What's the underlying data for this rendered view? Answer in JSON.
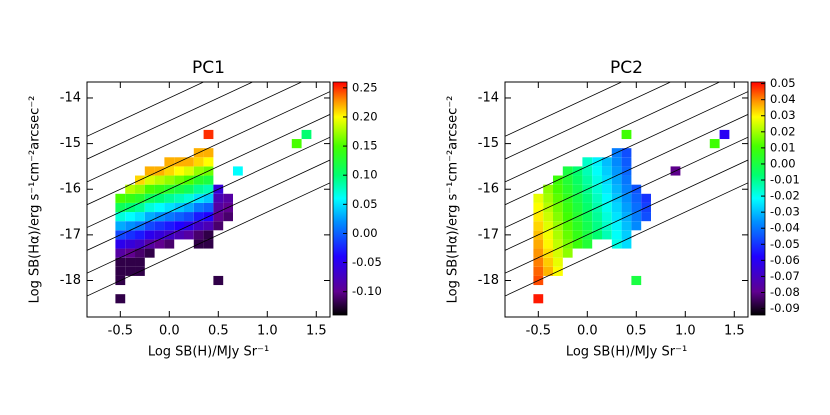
{
  "chart_data": [
    {
      "type": "heatmap",
      "title": "PC1",
      "xlabel": "Log SB(H)/MJy Sr⁻¹",
      "ylabel": "Log SB(Hα)/erg s⁻¹cm⁻²arcsec⁻²",
      "xlim": [
        -0.84,
        1.64
      ],
      "ylim": [
        -18.8,
        -13.65
      ],
      "xticks": [
        -0.5,
        {
          "value": 0,
          "label": "0.0"
        },
        0.5,
        {
          "value": 1,
          "label": "1.0"
        },
        1.5
      ],
      "yticks": [
        -18,
        -17,
        -16,
        -15,
        -14
      ],
      "colormap": "rainbow",
      "clim": [
        -0.14,
        0.26
      ],
      "cticks": [
        {
          "value": -0.1,
          "label": "-0.10"
        },
        -0.05,
        {
          "value": 0,
          "label": "0.00"
        },
        0.05,
        {
          "value": 0.1,
          "label": "0.10"
        },
        0.15,
        {
          "value": 0.2,
          "label": "0.20"
        },
        0.25
      ],
      "cell_width": 0.1,
      "cell_height": 0.2,
      "reference_lines": {
        "slope": 1,
        "intercepts": [
          -14,
          -14.5,
          -15,
          -15.5,
          -16,
          -16.5,
          -17,
          -17.5
        ]
      },
      "x": [
        -0.5,
        -0.5,
        -0.5,
        -0.5,
        -0.5,
        -0.5,
        -0.5,
        -0.5,
        -0.5,
        -0.5,
        -0.5,
        -0.4,
        -0.4,
        -0.4,
        -0.4,
        -0.4,
        -0.4,
        -0.4,
        -0.4,
        -0.4,
        -0.4,
        -0.3,
        -0.3,
        -0.3,
        -0.3,
        -0.3,
        -0.3,
        -0.3,
        -0.3,
        -0.3,
        -0.3,
        -0.3,
        -0.2,
        -0.2,
        -0.2,
        -0.2,
        -0.2,
        -0.2,
        -0.2,
        -0.2,
        -0.2,
        -0.2,
        -0.1,
        -0.1,
        -0.1,
        -0.1,
        -0.1,
        -0.1,
        -0.1,
        -0.1,
        -0.1,
        0,
        0,
        0,
        0,
        0,
        0,
        0,
        0,
        0,
        0,
        0.1,
        0.1,
        0.1,
        0.1,
        0.1,
        0.1,
        0.1,
        0.1,
        0.1,
        0.2,
        0.2,
        0.2,
        0.2,
        0.2,
        0.2,
        0.2,
        0.2,
        0.2,
        0.3,
        0.3,
        0.3,
        0.3,
        0.3,
        0.3,
        0.3,
        0.3,
        0.3,
        0.3,
        0.3,
        0.4,
        0.4,
        0.4,
        0.4,
        0.4,
        0.4,
        0.4,
        0.4,
        0.4,
        0.4,
        0.4,
        0.5,
        0.5,
        0.5,
        0.5,
        0.5,
        0.6,
        0.6,
        0.6,
        0.5,
        0.7,
        0.4,
        1.3,
        1.4
      ],
      "y": [
        -18.4,
        -18.0,
        -17.8,
        -17.6,
        -17.4,
        -17.2,
        -17.0,
        -16.8,
        -16.6,
        -16.4,
        -16.2,
        -17.8,
        -17.6,
        -17.4,
        -17.2,
        -17.0,
        -16.8,
        -16.6,
        -16.4,
        -16.2,
        -16.0,
        -17.8,
        -17.6,
        -17.4,
        -17.2,
        -17.0,
        -16.8,
        -16.6,
        -16.4,
        -16.2,
        -16.0,
        -15.8,
        -17.4,
        -17.2,
        -17.0,
        -16.8,
        -16.6,
        -16.4,
        -16.2,
        -16.0,
        -15.8,
        -15.6,
        -17.2,
        -17.0,
        -16.8,
        -16.6,
        -16.4,
        -16.2,
        -16.0,
        -15.8,
        -15.6,
        -17.2,
        -17.0,
        -16.8,
        -16.6,
        -16.4,
        -16.2,
        -16.0,
        -15.8,
        -15.6,
        -15.4,
        -17.0,
        -16.8,
        -16.6,
        -16.4,
        -16.2,
        -16.0,
        -15.8,
        -15.6,
        -15.4,
        -17.0,
        -16.8,
        -16.6,
        -16.4,
        -16.2,
        -16.0,
        -15.8,
        -15.6,
        -15.4,
        -17.2,
        -17.0,
        -16.8,
        -16.6,
        -16.4,
        -16.2,
        -16.0,
        -15.8,
        -15.6,
        -15.4,
        -15.2,
        -17.2,
        -17.0,
        -16.8,
        -16.6,
        -16.4,
        -16.2,
        -16.0,
        -15.8,
        -15.6,
        -15.4,
        -15.2,
        -16.8,
        -16.6,
        -16.4,
        -16.2,
        -16.0,
        -16.6,
        -16.4,
        -16.2,
        -18.0,
        -15.6,
        -14.8,
        -15.0,
        -14.8
      ],
      "values": [
        -0.12,
        -0.12,
        -0.12,
        -0.12,
        -0.09,
        -0.05,
        -0.01,
        0.03,
        0.07,
        0.11,
        0.15,
        -0.12,
        -0.12,
        -0.1,
        -0.06,
        -0.02,
        0.02,
        0.06,
        0.1,
        0.14,
        0.18,
        -0.12,
        -0.12,
        -0.11,
        -0.07,
        -0.03,
        0.01,
        0.05,
        0.09,
        0.13,
        0.17,
        0.21,
        -0.12,
        -0.09,
        -0.05,
        -0.01,
        0.03,
        0.07,
        0.11,
        0.15,
        0.19,
        0.22,
        -0.1,
        -0.06,
        -0.02,
        0.02,
        0.06,
        0.1,
        0.14,
        0.18,
        0.22,
        -0.11,
        -0.07,
        -0.03,
        0.01,
        0.05,
        0.09,
        0.13,
        0.17,
        0.21,
        0.22,
        -0.08,
        -0.04,
        0,
        0.04,
        0.08,
        0.12,
        0.16,
        0.2,
        0.22,
        -0.09,
        -0.05,
        -0.01,
        0.03,
        0.07,
        0.11,
        0.15,
        0.19,
        0.22,
        -0.12,
        -0.11,
        -0.07,
        -0.03,
        0.01,
        0.05,
        0.09,
        0.13,
        0.17,
        0.21,
        0.22,
        -0.12,
        -0.12,
        -0.08,
        -0.04,
        0,
        0.04,
        0.08,
        0.12,
        0.16,
        0.2,
        0.22,
        -0.11,
        -0.1,
        -0.09,
        -0.08,
        -0.06,
        -0.11,
        -0.1,
        -0.09,
        -0.12,
        0.06,
        0.25,
        0.15,
        0.1
      ]
    },
    {
      "type": "heatmap",
      "title": "PC2",
      "xlabel": "Log SB(H)/MJy Sr⁻¹",
      "ylabel": "Log SB(Hα)/erg s⁻¹cm⁻²arcsec⁻²",
      "xlim": [
        -0.84,
        1.64
      ],
      "ylim": [
        -18.8,
        -13.65
      ],
      "xticks": [
        -0.5,
        {
          "value": 0,
          "label": "0.0"
        },
        0.5,
        {
          "value": 1,
          "label": "1.0"
        },
        1.5
      ],
      "yticks": [
        -18,
        -17,
        -16,
        -15,
        -14
      ],
      "colormap": "rainbow",
      "clim": [
        -0.094,
        0.051
      ],
      "cticks": [
        -0.09,
        -0.08,
        -0.07,
        -0.06,
        -0.05,
        -0.04,
        -0.03,
        -0.02,
        -0.01,
        {
          "value": 0,
          "label": "0.00"
        },
        0.01,
        0.02,
        0.03,
        0.04,
        0.05
      ],
      "cell_width": 0.1,
      "cell_height": 0.2,
      "reference_lines": {
        "slope": 1,
        "intercepts": [
          -14,
          -14.5,
          -15,
          -15.5,
          -16,
          -16.5,
          -17,
          -17.5
        ]
      },
      "x": [
        -0.5,
        -0.5,
        -0.5,
        -0.5,
        -0.5,
        -0.5,
        -0.5,
        -0.5,
        -0.5,
        -0.5,
        -0.5,
        -0.4,
        -0.4,
        -0.4,
        -0.4,
        -0.4,
        -0.4,
        -0.4,
        -0.4,
        -0.4,
        -0.4,
        -0.3,
        -0.3,
        -0.3,
        -0.3,
        -0.3,
        -0.3,
        -0.3,
        -0.3,
        -0.3,
        -0.3,
        -0.3,
        -0.2,
        -0.2,
        -0.2,
        -0.2,
        -0.2,
        -0.2,
        -0.2,
        -0.2,
        -0.2,
        -0.2,
        -0.1,
        -0.1,
        -0.1,
        -0.1,
        -0.1,
        -0.1,
        -0.1,
        -0.1,
        -0.1,
        0,
        0,
        0,
        0,
        0,
        0,
        0,
        0,
        0,
        0,
        0.1,
        0.1,
        0.1,
        0.1,
        0.1,
        0.1,
        0.1,
        0.1,
        0.1,
        0.2,
        0.2,
        0.2,
        0.2,
        0.2,
        0.2,
        0.2,
        0.2,
        0.2,
        0.3,
        0.3,
        0.3,
        0.3,
        0.3,
        0.3,
        0.3,
        0.3,
        0.3,
        0.3,
        0.3,
        0.4,
        0.4,
        0.4,
        0.4,
        0.4,
        0.4,
        0.4,
        0.4,
        0.4,
        0.4,
        0.4,
        0.5,
        0.5,
        0.5,
        0.5,
        0.5,
        0.6,
        0.6,
        0.6,
        0.5,
        0.9,
        0.4,
        1.3,
        1.4
      ],
      "y": [
        -18.4,
        -18.0,
        -17.8,
        -17.6,
        -17.4,
        -17.2,
        -17.0,
        -16.8,
        -16.6,
        -16.4,
        -16.2,
        -17.8,
        -17.6,
        -17.4,
        -17.2,
        -17.0,
        -16.8,
        -16.6,
        -16.4,
        -16.2,
        -16.0,
        -17.8,
        -17.6,
        -17.4,
        -17.2,
        -17.0,
        -16.8,
        -16.6,
        -16.4,
        -16.2,
        -16.0,
        -15.8,
        -17.4,
        -17.2,
        -17.0,
        -16.8,
        -16.6,
        -16.4,
        -16.2,
        -16.0,
        -15.8,
        -15.6,
        -17.2,
        -17.0,
        -16.8,
        -16.6,
        -16.4,
        -16.2,
        -16.0,
        -15.8,
        -15.6,
        -17.2,
        -17.0,
        -16.8,
        -16.6,
        -16.4,
        -16.2,
        -16.0,
        -15.8,
        -15.6,
        -15.4,
        -17.0,
        -16.8,
        -16.6,
        -16.4,
        -16.2,
        -16.0,
        -15.8,
        -15.6,
        -15.4,
        -17.0,
        -16.8,
        -16.6,
        -16.4,
        -16.2,
        -16.0,
        -15.8,
        -15.6,
        -15.4,
        -17.2,
        -17.0,
        -16.8,
        -16.6,
        -16.4,
        -16.2,
        -16.0,
        -15.8,
        -15.6,
        -15.4,
        -15.2,
        -17.2,
        -17.0,
        -16.8,
        -16.6,
        -16.4,
        -16.2,
        -16.0,
        -15.8,
        -15.6,
        -15.4,
        -15.2,
        -16.8,
        -16.6,
        -16.4,
        -16.2,
        -16.0,
        -16.6,
        -16.4,
        -16.2,
        -18.0,
        -15.6,
        -14.8,
        -15.0,
        -14.8
      ],
      "values": [
        0.049,
        0.045,
        0.043,
        0.041,
        0.039,
        0.037,
        0.035,
        0.033,
        0.031,
        0.029,
        0.027,
        0.036,
        0.034,
        0.032,
        0.03,
        0.028,
        0.026,
        0.024,
        0.022,
        0.02,
        0.018,
        0.029,
        0.027,
        0.025,
        0.023,
        0.021,
        0.019,
        0.017,
        0.015,
        0.013,
        0.011,
        0.009,
        0.018,
        0.016,
        0.014,
        0.012,
        0.01,
        0.008,
        0.006,
        0.004,
        0.002,
        0,
        0.009,
        0.007,
        0.005,
        0.003,
        0.001,
        -0.001,
        -0.003,
        -0.005,
        -0.007,
        0.002,
        0,
        -0.002,
        -0.004,
        -0.006,
        -0.008,
        -0.01,
        -0.012,
        -0.014,
        -0.016,
        -0.007,
        -0.009,
        -0.011,
        -0.013,
        -0.015,
        -0.017,
        -0.019,
        -0.021,
        -0.023,
        -0.014,
        -0.016,
        -0.018,
        -0.02,
        -0.022,
        -0.024,
        -0.026,
        -0.028,
        -0.03,
        -0.019,
        -0.021,
        -0.023,
        -0.025,
        -0.027,
        -0.029,
        -0.031,
        -0.033,
        -0.035,
        -0.037,
        -0.039,
        -0.026,
        -0.028,
        -0.03,
        -0.032,
        -0.034,
        -0.036,
        -0.038,
        -0.04,
        -0.042,
        -0.044,
        -0.046,
        -0.037,
        -0.039,
        -0.041,
        -0.043,
        -0.045,
        -0.046,
        -0.048,
        -0.05,
        0,
        -0.08,
        0.01,
        0.01,
        -0.06
      ]
    }
  ]
}
